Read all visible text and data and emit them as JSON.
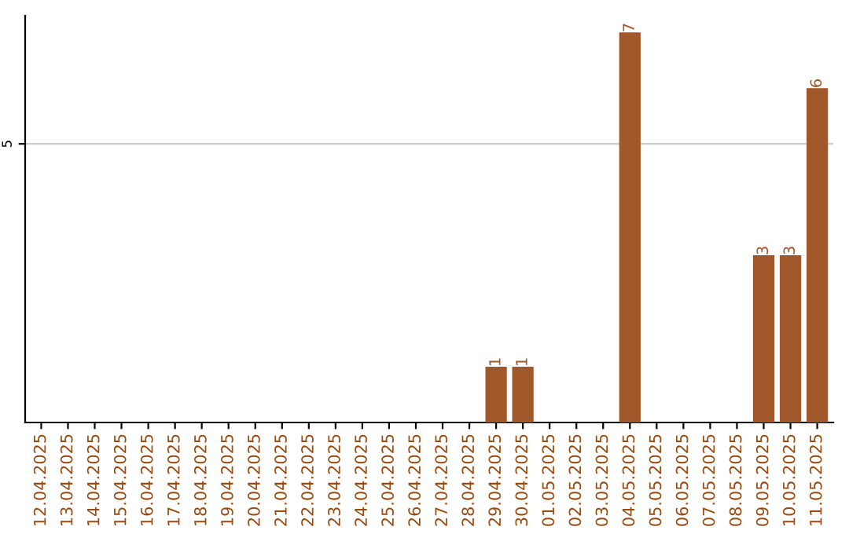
{
  "chart_data": {
    "type": "bar",
    "categories": [
      "12.04.2025",
      "13.04.2025",
      "14.04.2025",
      "15.04.2025",
      "16.04.2025",
      "17.04.2025",
      "18.04.2025",
      "19.04.2025",
      "20.04.2025",
      "21.04.2025",
      "22.04.2025",
      "23.04.2025",
      "24.04.2025",
      "25.04.2025",
      "26.04.2025",
      "27.04.2025",
      "28.04.2025",
      "29.04.2025",
      "30.04.2025",
      "01.05.2025",
      "02.05.2025",
      "03.05.2025",
      "04.05.2025",
      "05.05.2025",
      "06.05.2025",
      "07.05.2025",
      "08.05.2025",
      "09.05.2025",
      "10.05.2025",
      "11.05.2025"
    ],
    "values": [
      null,
      null,
      null,
      null,
      null,
      null,
      null,
      null,
      null,
      null,
      null,
      null,
      null,
      null,
      null,
      null,
      null,
      1,
      1,
      null,
      null,
      null,
      7,
      null,
      null,
      null,
      null,
      3,
      3,
      6
    ],
    "data_labels": true,
    "color": "#a0572a",
    "ylim": [
      0,
      7.3
    ],
    "yticks": [
      5
    ],
    "grid": "y"
  }
}
